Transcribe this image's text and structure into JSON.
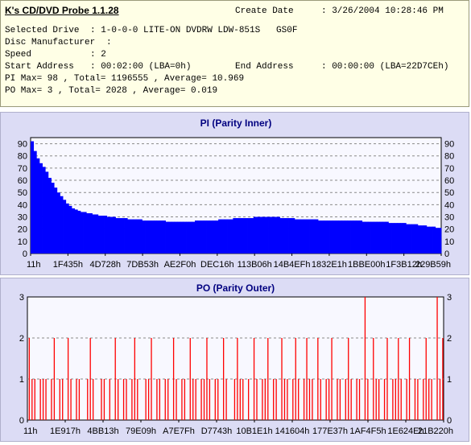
{
  "header": {
    "app_title": "K's CD/DVD Probe 1.1.28",
    "create_date_label": "Create Date",
    "create_date_value": ": 3/26/2004 10:28:46 PM",
    "selected_drive_label": "Selected Drive",
    "selected_drive_value": ": 1-0-0-0 LITE-ON DVDRW LDW-851S   GS0F",
    "disc_manufacturer_label": "Disc Manufacturer",
    "disc_manufacturer_value": ":",
    "speed_label": "Speed",
    "speed_value": ": 2",
    "start_address_label": "Start Address",
    "start_address_value": ": 00:02:00 (LBA=0h)",
    "end_address_label": "End Address",
    "end_address_value": ": 00:00:00 (LBA=22D7CEh)",
    "pi_summary": "PI Max= 98 , Total= 1196555 , Average= 10.969",
    "po_summary": "PO Max= 3 , Total= 2028 , Average= 0.019"
  },
  "colors": {
    "pi_bar": "#0000ff",
    "po_bar": "#ff0000",
    "grid": "#8a8a8a",
    "title": "#000080",
    "plot_bg": "#f8f8ff"
  },
  "chart_data": [
    {
      "type": "bar",
      "title": "PI (Parity Inner)",
      "xlabel": "",
      "ylabel": "",
      "ylim": [
        0,
        95
      ],
      "yticks": [
        0,
        10,
        20,
        30,
        40,
        50,
        60,
        70,
        80,
        90
      ],
      "xtick_labels": [
        "11h",
        "1F435h",
        "4D728h",
        "7DB53h",
        "AE2F0h",
        "DEC16h",
        "113B06h",
        "14B4EFh",
        "1832E1h",
        "1BBE00h",
        "1F3B12h",
        "229B59h"
      ],
      "grid": true,
      "series": [
        {
          "values": [
            92,
            84,
            78,
            74,
            71,
            67,
            62,
            58,
            54,
            50,
            47,
            44,
            41,
            39,
            37,
            36,
            35,
            34,
            34,
            33,
            33,
            32,
            32,
            31,
            31,
            31,
            30,
            30,
            30,
            29,
            29,
            29,
            29,
            28,
            28,
            28,
            28,
            28,
            27,
            27,
            27,
            27,
            27,
            27,
            27,
            27,
            26,
            26,
            26,
            26,
            26,
            26,
            26,
            26,
            26,
            26,
            27,
            27,
            27,
            27,
            27,
            27,
            27,
            27,
            28,
            28,
            28,
            28,
            28,
            29,
            29,
            29,
            29,
            29,
            29,
            29,
            30,
            30,
            30,
            30,
            30,
            30,
            30,
            30,
            30,
            29,
            29,
            29,
            29,
            29,
            28,
            28,
            28,
            28,
            28,
            28,
            28,
            28,
            27,
            27,
            27,
            27,
            27,
            27,
            27,
            27,
            27,
            27,
            27,
            27,
            27,
            27,
            27,
            26,
            26,
            26,
            26,
            26,
            26,
            26,
            26,
            26,
            25,
            25,
            25,
            25,
            25,
            25,
            24,
            24,
            24,
            24,
            23,
            23,
            23,
            22,
            22,
            22,
            21,
            21
          ]
        }
      ]
    },
    {
      "type": "bar",
      "title": "PO (Parity Outer)",
      "xlabel": "",
      "ylabel": "",
      "ylim": [
        0,
        3
      ],
      "yticks": [
        0,
        1,
        2,
        3
      ],
      "xtick_labels": [
        "11h",
        "1E917h",
        "4BB13h",
        "79E09h",
        "A7E7Fh",
        "D7743h",
        "10B1E1h",
        "141604h",
        "177E37h",
        "1AF4F5h",
        "1E624Eh",
        "21B220h"
      ],
      "grid": true,
      "series": [
        {
          "values": [
            2,
            1,
            1,
            0,
            1,
            1,
            1,
            0,
            1,
            2,
            0,
            1,
            1,
            0,
            2,
            1,
            0,
            1,
            1,
            0,
            0,
            1,
            2,
            1,
            0,
            0,
            1,
            1,
            0,
            1,
            0,
            2,
            1,
            0,
            1,
            1,
            0,
            1,
            2,
            1,
            0,
            0,
            1,
            1,
            2,
            0,
            1,
            1,
            0,
            1,
            1,
            0,
            2,
            1,
            0,
            1,
            1,
            0,
            2,
            1,
            1,
            0,
            1,
            1,
            2,
            1,
            0,
            1,
            1,
            0,
            2,
            1,
            0,
            0,
            1,
            2,
            1,
            1,
            0,
            1,
            0,
            2,
            1,
            0,
            1,
            1,
            2,
            0,
            1,
            1,
            0,
            2,
            1,
            1,
            0,
            1,
            2,
            1,
            0,
            1,
            2,
            1,
            1,
            0,
            2,
            1,
            0,
            1,
            1,
            2,
            0,
            1,
            1,
            0,
            1,
            2,
            1,
            0,
            1,
            1,
            0,
            3,
            1,
            0,
            2,
            1,
            1,
            0,
            1,
            2,
            0,
            1,
            1,
            2,
            1,
            0,
            1,
            2,
            0,
            1,
            1,
            0,
            1,
            2,
            1,
            1,
            0,
            3,
            1,
            2
          ]
        }
      ]
    }
  ]
}
